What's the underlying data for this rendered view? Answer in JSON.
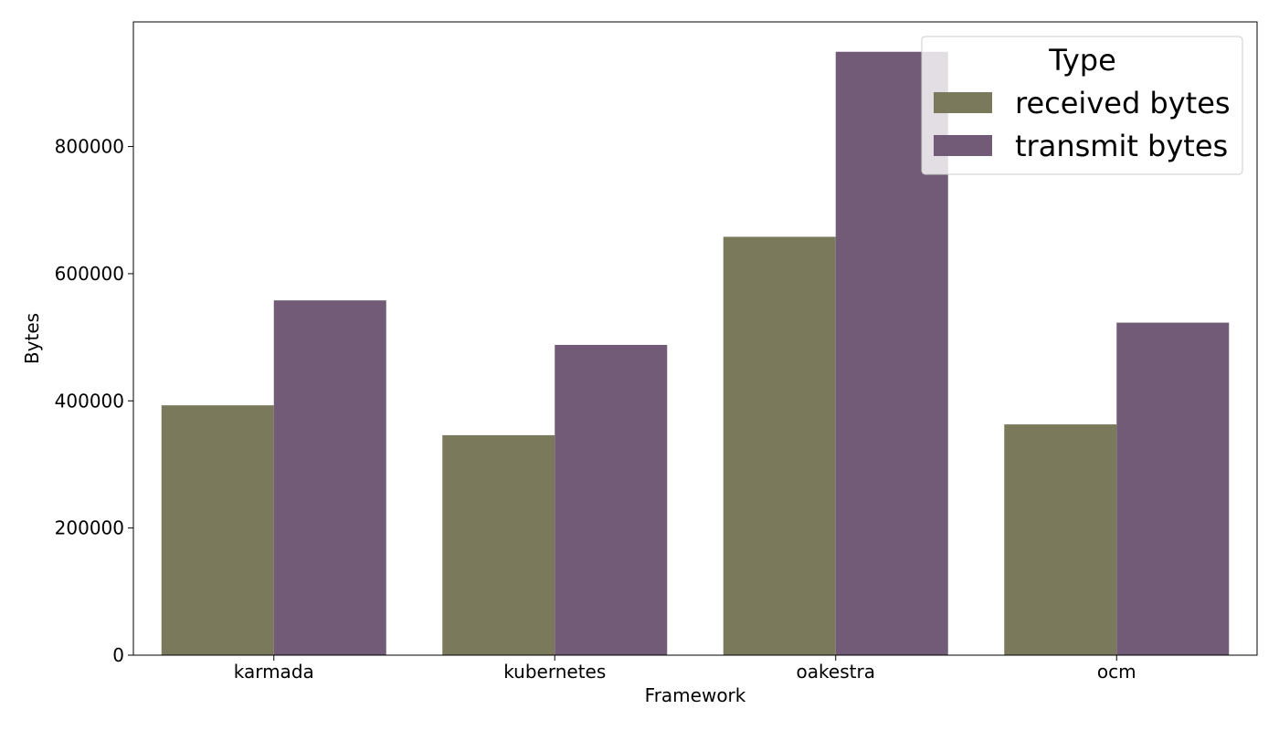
{
  "chart_data": {
    "type": "bar",
    "title": "",
    "xlabel": "Framework",
    "ylabel": "Bytes",
    "categories": [
      "karmada",
      "kubernetes",
      "oakestra",
      "ocm"
    ],
    "series": [
      {
        "name": "received bytes",
        "color": "#7b795c",
        "values": [
          393000,
          346000,
          658000,
          363000
        ]
      },
      {
        "name": "transmit bytes",
        "color": "#715b76",
        "values": [
          558000,
          488000,
          949000,
          523000
        ]
      }
    ],
    "ylim": [
      0,
      996000
    ],
    "yticks": [
      0,
      200000,
      400000,
      600000,
      800000
    ],
    "grid": false,
    "legend": {
      "title": "Type",
      "placement": "top-right"
    }
  }
}
